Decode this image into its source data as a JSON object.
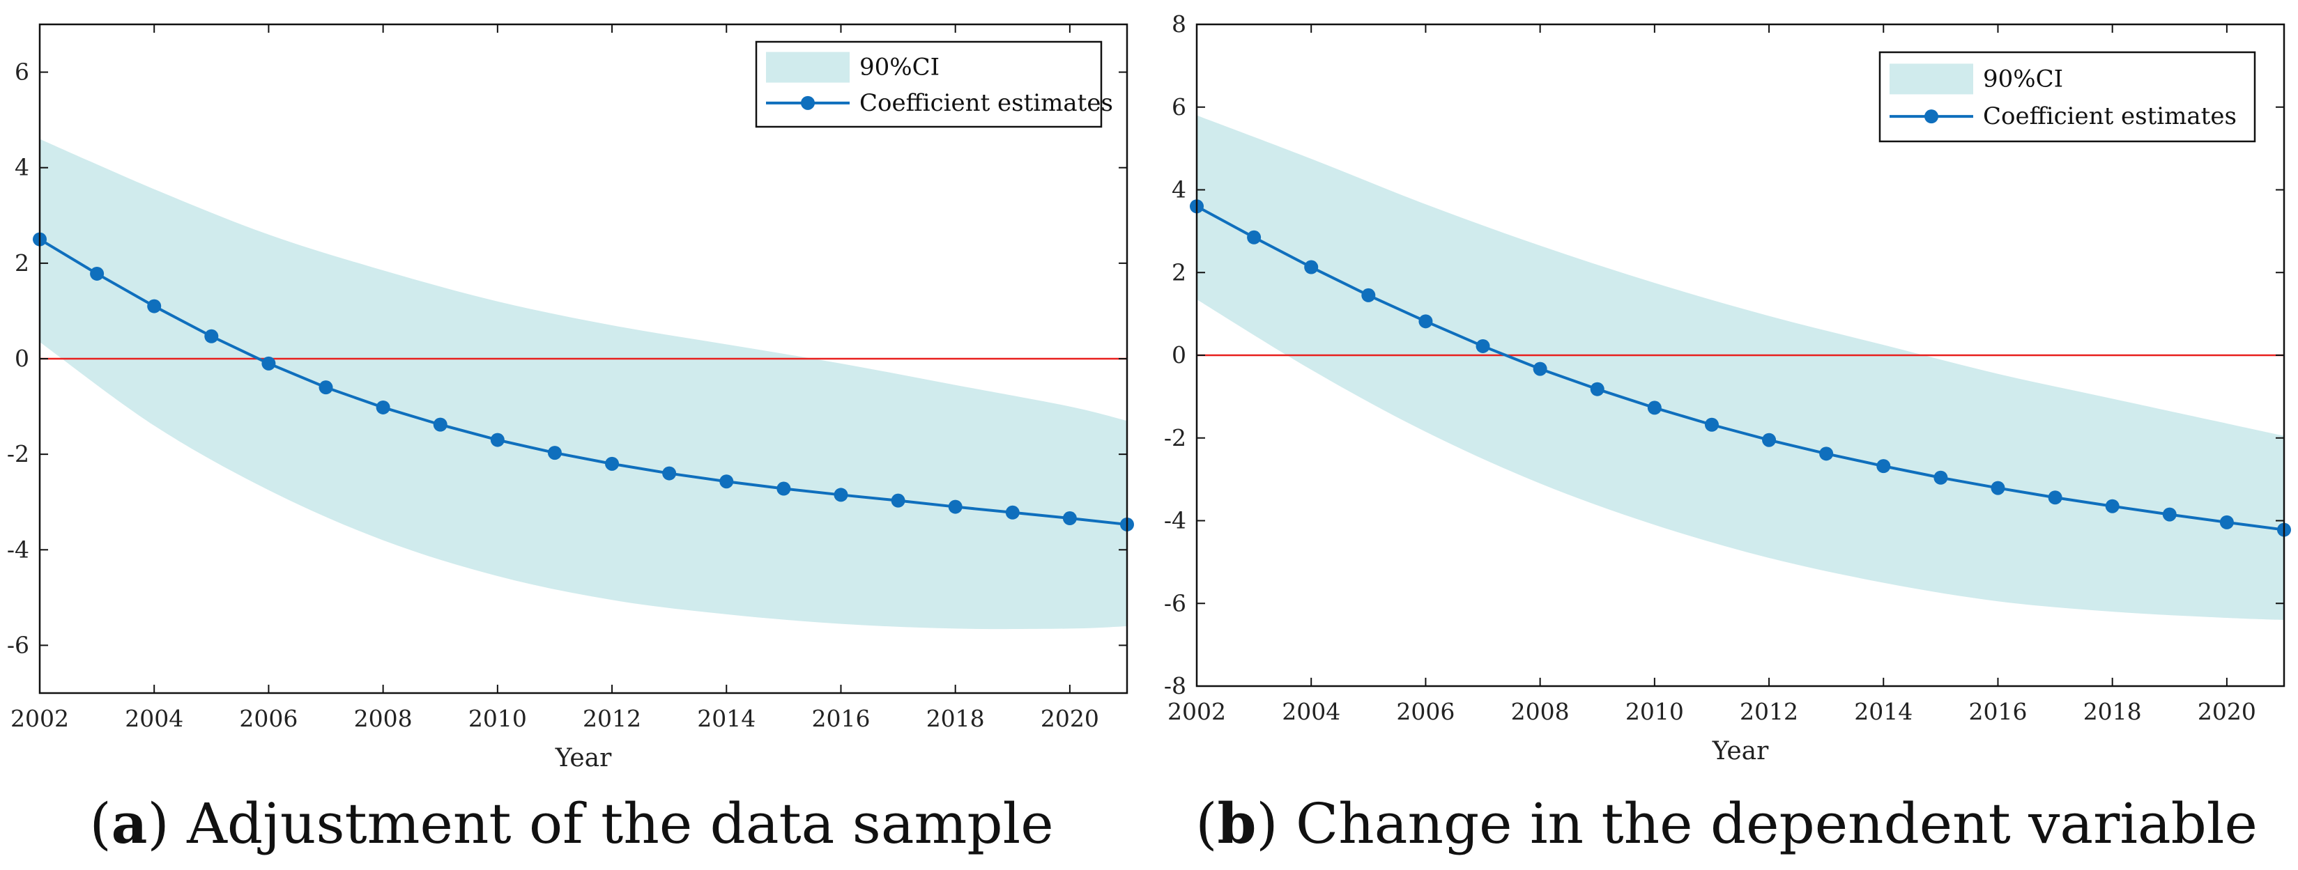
{
  "chart_data": [
    {
      "panel": "a",
      "type": "line",
      "caption_letter": "a",
      "caption": "Adjustment of the data sample",
      "xlabel": "Year",
      "ylabel": "",
      "xlim": [
        2002,
        2021
      ],
      "ylim": [
        -7,
        7
      ],
      "xticks": [
        2002,
        2004,
        2006,
        2008,
        2010,
        2012,
        2014,
        2016,
        2018,
        2020
      ],
      "yticks": [
        -6,
        -4,
        -2,
        0,
        2,
        4,
        6
      ],
      "zero_line_color": "#e8201e",
      "series": [
        {
          "name": "Coefficient estimates",
          "color": "#0f6fbd",
          "x": [
            2002,
            2003,
            2004,
            2005,
            2006,
            2007,
            2008,
            2009,
            2010,
            2011,
            2012,
            2013,
            2014,
            2015,
            2016,
            2017,
            2018,
            2019,
            2020,
            2021
          ],
          "y": [
            2.5,
            1.78,
            1.1,
            0.47,
            -0.1,
            -0.6,
            -1.02,
            -1.38,
            -1.7,
            -1.97,
            -2.2,
            -2.4,
            -2.57,
            -2.72,
            -2.85,
            -2.97,
            -3.1,
            -3.22,
            -3.34,
            -3.47
          ]
        }
      ],
      "ci": {
        "name": "90%CI",
        "color": "#d0ebed",
        "x": [
          2002,
          2004,
          2006,
          2008,
          2010,
          2012,
          2014,
          2016,
          2018,
          2020,
          2021
        ],
        "upper": [
          4.6,
          3.55,
          2.6,
          1.85,
          1.2,
          0.7,
          0.3,
          -0.1,
          -0.55,
          -1.0,
          -1.3
        ],
        "lower": [
          0.35,
          -1.4,
          -2.75,
          -3.8,
          -4.55,
          -5.05,
          -5.35,
          -5.55,
          -5.65,
          -5.65,
          -5.6
        ]
      },
      "legend_position": "top-right"
    },
    {
      "panel": "b",
      "type": "line",
      "caption_letter": "b",
      "caption": "Change in the dependent variable",
      "xlabel": "Year",
      "ylabel": "",
      "xlim": [
        2002,
        2021
      ],
      "ylim": [
        -8,
        8
      ],
      "xticks": [
        2002,
        2004,
        2006,
        2008,
        2010,
        2012,
        2014,
        2016,
        2018,
        2020
      ],
      "yticks": [
        -8,
        -6,
        -4,
        -2,
        0,
        2,
        4,
        6,
        8
      ],
      "zero_line_color": "#e8201e",
      "series": [
        {
          "name": "Coefficient estimates",
          "color": "#0f6fbd",
          "x": [
            2002,
            2003,
            2004,
            2005,
            2006,
            2007,
            2008,
            2009,
            2010,
            2011,
            2012,
            2013,
            2014,
            2015,
            2016,
            2017,
            2018,
            2019,
            2020,
            2021
          ],
          "y": [
            3.6,
            2.85,
            2.13,
            1.45,
            0.82,
            0.22,
            -0.33,
            -0.82,
            -1.27,
            -1.68,
            -2.05,
            -2.38,
            -2.68,
            -2.96,
            -3.21,
            -3.44,
            -3.65,
            -3.85,
            -4.04,
            -4.22
          ]
        }
      ],
      "ci": {
        "name": "90%CI",
        "color": "#d0ebed",
        "x": [
          2002,
          2004,
          2006,
          2008,
          2010,
          2012,
          2014,
          2016,
          2018,
          2020,
          2021
        ],
        "upper": [
          5.8,
          4.75,
          3.65,
          2.65,
          1.75,
          0.95,
          0.25,
          -0.45,
          -1.05,
          -1.65,
          -1.95
        ],
        "lower": [
          1.35,
          -0.35,
          -1.85,
          -3.1,
          -4.1,
          -4.9,
          -5.5,
          -5.95,
          -6.2,
          -6.35,
          -6.4
        ]
      },
      "legend_position": "top-right"
    }
  ]
}
